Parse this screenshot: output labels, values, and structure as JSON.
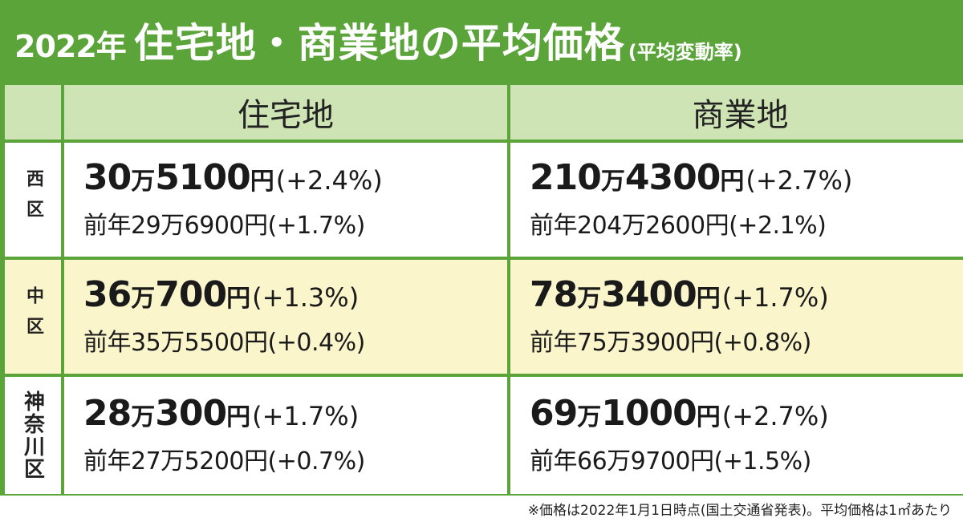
{
  "title": {
    "year": "2022年",
    "main": "住宅地・商業地の平均価格",
    "sub": "(平均変動率)"
  },
  "colors": {
    "green": "#5aa43a",
    "header_bg": "#cfe4b4",
    "highlight_row": "#fbf5cc"
  },
  "columns": {
    "residential": "住宅地",
    "commercial": "商業地"
  },
  "rows": [
    {
      "district": "西区",
      "residential": {
        "man": "30",
        "man_unit": "万",
        "rest": "5100",
        "yen": "円",
        "rate": "(+2.4%)",
        "prev": "前年29万6900円(+1.7%)"
      },
      "commercial": {
        "man": "210",
        "man_unit": "万",
        "rest": "4300",
        "yen": "円",
        "rate": "(+2.7%)",
        "prev": "前年204万2600円(+2.1%)"
      }
    },
    {
      "district": "中区",
      "residential": {
        "man": "36",
        "man_unit": "万",
        "rest": "700",
        "yen": "円",
        "rate": "(+1.3%)",
        "prev": "前年35万5500円(+0.4%)"
      },
      "commercial": {
        "man": "78",
        "man_unit": "万",
        "rest": "3400",
        "yen": "円",
        "rate": "(+1.7%)",
        "prev": "前年75万3900円(+0.8%)"
      }
    },
    {
      "district": "神奈川区",
      "residential": {
        "man": "28",
        "man_unit": "万",
        "rest": "300",
        "yen": "円",
        "rate": "(+1.7%)",
        "prev": "前年27万5200円(+0.7%)"
      },
      "commercial": {
        "man": "69",
        "man_unit": "万",
        "rest": "1000",
        "yen": "円",
        "rate": "(+2.7%)",
        "prev": "前年66万9700円(+1.5%)"
      }
    }
  ],
  "footnote": "※価格は2022年1月1日時点(国土交通省発表)。平均価格は1㎡あたり"
}
